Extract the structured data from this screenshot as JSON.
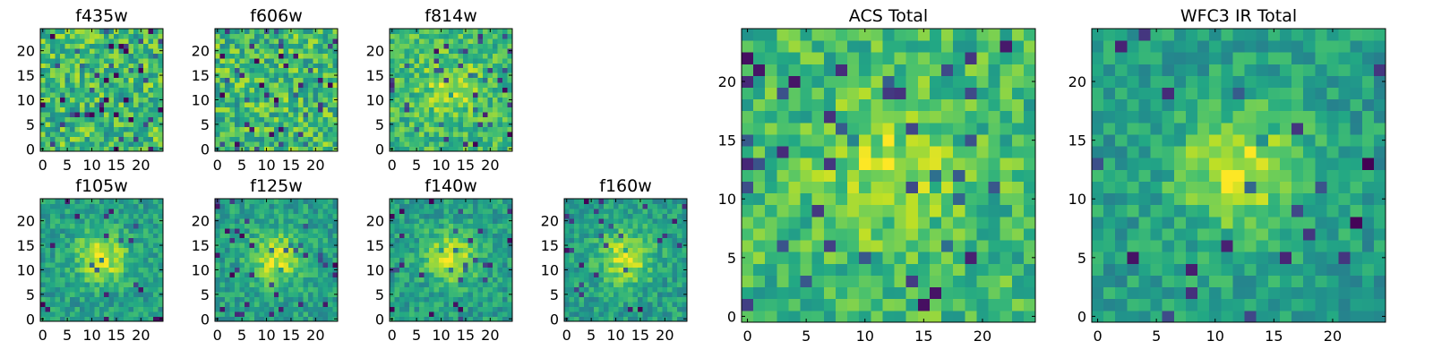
{
  "chart_data": [
    {
      "type": "heatmap",
      "title": "f435w",
      "xlim": [
        -0.5,
        24.5
      ],
      "ylim": [
        -0.5,
        24.5
      ],
      "xticks": [
        0,
        5,
        10,
        15,
        20
      ],
      "yticks": [
        0,
        5,
        10,
        15,
        20
      ],
      "tick_labels": [
        "0",
        "5",
        "10",
        "15",
        "20"
      ],
      "colormap": "viridis",
      "pattern": "noise",
      "seed": 11,
      "cells": 25
    },
    {
      "type": "heatmap",
      "title": "f606w",
      "xlim": [
        -0.5,
        24.5
      ],
      "ylim": [
        -0.5,
        24.5
      ],
      "xticks": [
        0,
        5,
        10,
        15,
        20
      ],
      "yticks": [
        0,
        5,
        10,
        15,
        20
      ],
      "tick_labels": [
        "0",
        "5",
        "10",
        "15",
        "20"
      ],
      "colormap": "viridis",
      "pattern": "noise",
      "seed": 23,
      "cells": 25
    },
    {
      "type": "heatmap",
      "title": "f814w",
      "xlim": [
        -0.5,
        24.5
      ],
      "ylim": [
        -0.5,
        24.5
      ],
      "xticks": [
        0,
        5,
        10,
        15,
        20
      ],
      "yticks": [
        0,
        5,
        10,
        15,
        20
      ],
      "tick_labels": [
        "0",
        "5",
        "10",
        "15",
        "20"
      ],
      "colormap": "viridis",
      "pattern": "weak-source",
      "seed": 37,
      "cells": 25
    },
    {
      "type": "heatmap",
      "title": "f105w",
      "xlim": [
        -0.5,
        24.5
      ],
      "ylim": [
        -0.5,
        24.5
      ],
      "xticks": [
        0,
        5,
        10,
        15,
        20
      ],
      "yticks": [
        0,
        5,
        10,
        15,
        20
      ],
      "tick_labels": [
        "0",
        "5",
        "10",
        "15",
        "20"
      ],
      "colormap": "viridis",
      "pattern": "source",
      "seed": 41,
      "cells": 25
    },
    {
      "type": "heatmap",
      "title": "f125w",
      "xlim": [
        -0.5,
        24.5
      ],
      "ylim": [
        -0.5,
        24.5
      ],
      "xticks": [
        0,
        5,
        10,
        15,
        20
      ],
      "yticks": [
        0,
        5,
        10,
        15,
        20
      ],
      "tick_labels": [
        "0",
        "5",
        "10",
        "15",
        "20"
      ],
      "colormap": "viridis",
      "pattern": "source",
      "seed": 53,
      "cells": 25
    },
    {
      "type": "heatmap",
      "title": "f140w",
      "xlim": [
        -0.5,
        24.5
      ],
      "ylim": [
        -0.5,
        24.5
      ],
      "xticks": [
        0,
        5,
        10,
        15,
        20
      ],
      "yticks": [
        0,
        5,
        10,
        15,
        20
      ],
      "tick_labels": [
        "0",
        "5",
        "10",
        "15",
        "20"
      ],
      "colormap": "viridis",
      "pattern": "source",
      "seed": 67,
      "cells": 25
    },
    {
      "type": "heatmap",
      "title": "f160w",
      "xlim": [
        -0.5,
        24.5
      ],
      "ylim": [
        -0.5,
        24.5
      ],
      "xticks": [
        0,
        5,
        10,
        15,
        20
      ],
      "yticks": [
        0,
        5,
        10,
        15,
        20
      ],
      "tick_labels": [
        "0",
        "5",
        "10",
        "15",
        "20"
      ],
      "colormap": "viridis",
      "pattern": "source",
      "seed": 79,
      "cells": 25
    },
    {
      "type": "heatmap",
      "title": "ACS Total",
      "xlim": [
        -0.5,
        24.5
      ],
      "ylim": [
        -0.5,
        24.5
      ],
      "xticks": [
        0,
        5,
        10,
        15,
        20
      ],
      "yticks": [
        0,
        5,
        10,
        15,
        20
      ],
      "tick_labels": [
        "0",
        "5",
        "10",
        "15",
        "20"
      ],
      "colormap": "viridis",
      "pattern": "weak-source",
      "seed": 83,
      "cells": 25
    },
    {
      "type": "heatmap",
      "title": "WFC3 IR Total",
      "xlim": [
        -0.5,
        24.5
      ],
      "ylim": [
        -0.5,
        24.5
      ],
      "xticks": [
        0,
        5,
        10,
        15,
        20
      ],
      "yticks": [
        0,
        5,
        10,
        15,
        20
      ],
      "tick_labels": [
        "0",
        "5",
        "10",
        "15",
        "20"
      ],
      "colormap": "viridis",
      "pattern": "source",
      "seed": 97,
      "cells": 25
    }
  ]
}
